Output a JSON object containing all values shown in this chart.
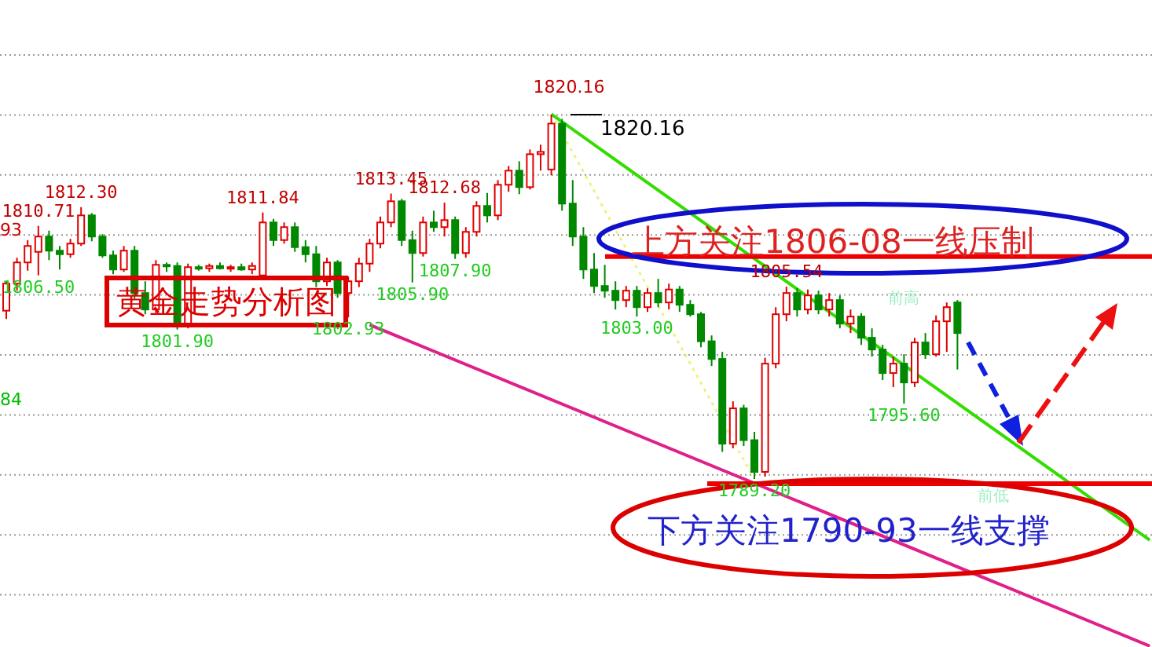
{
  "chart_data": {
    "type": "candlestick",
    "grid": true,
    "categories": [
      null,
      null,
      null,
      null,
      null,
      null,
      null,
      null,
      null,
      null,
      null,
      null,
      null,
      null,
      null,
      null,
      null,
      null,
      null,
      null,
      null,
      null,
      null,
      null,
      null,
      null,
      null,
      null,
      null,
      null,
      null,
      null,
      null,
      null,
      null,
      null,
      null,
      null,
      null,
      null,
      null,
      null,
      null,
      null,
      null,
      null,
      null,
      null,
      null,
      null,
      null,
      null,
      null,
      null,
      null,
      null,
      null,
      null,
      null,
      null,
      null,
      null,
      null,
      null,
      null,
      null,
      null,
      null,
      null,
      null,
      null,
      null,
      null,
      null,
      null,
      null,
      null,
      null,
      null,
      null,
      null,
      null,
      null,
      null,
      null,
      null,
      null,
      null,
      null,
      null,
      null,
      null,
      null,
      null,
      null,
      null,
      null,
      null,
      null,
      null,
      null,
      null,
      null,
      null,
      null,
      null,
      null,
      null
    ],
    "ohlc": [
      [
        1803.5,
        1806.0,
        1802.8,
        1805.8
      ],
      [
        1805.8,
        1808.0,
        1805.2,
        1807.6
      ],
      [
        1807.6,
        1809.5,
        1806.9,
        1809.0
      ],
      [
        1808.5,
        1810.71,
        1806.5,
        1809.8
      ],
      [
        1809.8,
        1810.3,
        1807.8,
        1808.6
      ],
      [
        1808.6,
        1809.0,
        1807.0,
        1808.3
      ],
      [
        1808.3,
        1809.6,
        1808.0,
        1809.2
      ],
      [
        1809.2,
        1812.3,
        1809.0,
        1811.6
      ],
      [
        1811.6,
        1811.8,
        1809.4,
        1809.8
      ],
      [
        1809.8,
        1810.0,
        1808.0,
        1808.2
      ],
      [
        1808.2,
        1808.6,
        1806.6,
        1807.0
      ],
      [
        1807.0,
        1809.0,
        1806.8,
        1808.6
      ],
      [
        1808.6,
        1809.0,
        1804.5,
        1805.0
      ],
      [
        1805.0,
        1806.0,
        1803.2,
        1803.6
      ],
      [
        1803.6,
        1807.8,
        1803.3,
        1807.4
      ],
      [
        1807.4,
        1807.6,
        1806.8,
        1807.3
      ],
      [
        1807.3,
        1807.6,
        1801.9,
        1802.2
      ],
      [
        1802.2,
        1807.5,
        1802.0,
        1807.2
      ],
      [
        1807.2,
        1807.4,
        1806.9,
        1807.1
      ],
      [
        1807.1,
        1807.5,
        1806.8,
        1807.3
      ],
      [
        1807.3,
        1807.6,
        1807.0,
        1807.1
      ],
      [
        1807.1,
        1807.4,
        1806.8,
        1807.2
      ],
      [
        1807.2,
        1807.5,
        1806.9,
        1807.0
      ],
      [
        1807.0,
        1807.6,
        1806.6,
        1807.3
      ],
      [
        1806.5,
        1811.84,
        1806.2,
        1811.0
      ],
      [
        1811.0,
        1811.3,
        1809.0,
        1809.5
      ],
      [
        1809.5,
        1811.0,
        1809.2,
        1810.6
      ],
      [
        1810.6,
        1811.0,
        1808.5,
        1808.9
      ],
      [
        1808.9,
        1809.5,
        1807.6,
        1808.3
      ],
      [
        1808.3,
        1809.0,
        1805.5,
        1806.0
      ],
      [
        1806.0,
        1808.0,
        1805.6,
        1807.6
      ],
      [
        1807.6,
        1807.8,
        1804.6,
        1805.0
      ],
      [
        1805.0,
        1806.4,
        1802.93,
        1806.0
      ],
      [
        1806.0,
        1808.0,
        1805.5,
        1807.5
      ],
      [
        1807.5,
        1809.6,
        1806.8,
        1809.2
      ],
      [
        1809.2,
        1811.5,
        1808.8,
        1811.0
      ],
      [
        1811.0,
        1813.45,
        1810.6,
        1812.8
      ],
      [
        1812.8,
        1813.0,
        1809.0,
        1809.5
      ],
      [
        1809.5,
        1810.3,
        1805.9,
        1808.4
      ],
      [
        1808.4,
        1811.5,
        1808.1,
        1811.0
      ],
      [
        1811.0,
        1812.0,
        1810.2,
        1810.6
      ],
      [
        1810.6,
        1812.68,
        1809.8,
        1811.2
      ],
      [
        1811.2,
        1811.5,
        1807.9,
        1808.4
      ],
      [
        1808.4,
        1810.6,
        1808.0,
        1810.2
      ],
      [
        1810.2,
        1812.8,
        1809.8,
        1812.4
      ],
      [
        1812.4,
        1813.5,
        1811.0,
        1811.6
      ],
      [
        1811.6,
        1814.6,
        1811.2,
        1814.2
      ],
      [
        1814.2,
        1815.8,
        1813.6,
        1815.4
      ],
      [
        1815.4,
        1816.2,
        1813.4,
        1814.0
      ],
      [
        1814.0,
        1817.2,
        1813.8,
        1816.8
      ],
      [
        1816.8,
        1817.6,
        1815.4,
        1817.0
      ],
      [
        1815.5,
        1820.16,
        1815.0,
        1819.4
      ],
      [
        1819.4,
        1819.8,
        1812.0,
        1812.6
      ],
      [
        1812.6,
        1814.6,
        1809.0,
        1809.8
      ],
      [
        1809.8,
        1810.6,
        1806.2,
        1807.0
      ],
      [
        1807.0,
        1808.4,
        1805.0,
        1805.6
      ],
      [
        1805.6,
        1807.4,
        1804.6,
        1805.2
      ],
      [
        1805.2,
        1806.0,
        1803.6,
        1804.4
      ],
      [
        1804.4,
        1805.6,
        1803.8,
        1805.2
      ],
      [
        1805.2,
        1805.6,
        1803.0,
        1803.8
      ],
      [
        1803.8,
        1805.4,
        1803.4,
        1805.0
      ],
      [
        1805.0,
        1806.2,
        1803.8,
        1804.2
      ],
      [
        1804.2,
        1805.8,
        1803.6,
        1805.3
      ],
      [
        1805.3,
        1805.6,
        1803.4,
        1804.0
      ],
      [
        1804.0,
        1804.4,
        1803.0,
        1803.2
      ],
      [
        1803.2,
        1803.4,
        1800.4,
        1800.9
      ],
      [
        1800.9,
        1801.4,
        1798.8,
        1799.4
      ],
      [
        1799.4,
        1800.0,
        1791.5,
        1792.2
      ],
      [
        1792.2,
        1795.8,
        1791.8,
        1795.2
      ],
      [
        1795.2,
        1795.5,
        1792.0,
        1792.5
      ],
      [
        1792.5,
        1793.2,
        1789.2,
        1789.8
      ],
      [
        1789.8,
        1799.5,
        1789.4,
        1799.0
      ],
      [
        1799.0,
        1803.8,
        1798.6,
        1803.2
      ],
      [
        1803.2,
        1805.54,
        1802.6,
        1805.0
      ],
      [
        1805.0,
        1805.4,
        1803.0,
        1803.6
      ],
      [
        1803.6,
        1805.3,
        1803.2,
        1804.8
      ],
      [
        1804.8,
        1805.2,
        1803.2,
        1803.6
      ],
      [
        1803.6,
        1805.0,
        1803.0,
        1804.4
      ],
      [
        1804.4,
        1804.8,
        1802.0,
        1802.4
      ],
      [
        1802.4,
        1803.6,
        1801.6,
        1803.0
      ],
      [
        1803.0,
        1803.3,
        1800.6,
        1801.2
      ],
      [
        1801.2,
        1802.0,
        1799.6,
        1800.2
      ],
      [
        1800.2,
        1800.6,
        1797.6,
        1798.2
      ],
      [
        1798.2,
        1799.6,
        1797.0,
        1799.0
      ],
      [
        1799.0,
        1799.8,
        1795.6,
        1797.4
      ],
      [
        1797.4,
        1801.2,
        1797.0,
        1800.8
      ],
      [
        1800.8,
        1801.6,
        1799.4,
        1799.8
      ],
      [
        1799.8,
        1803.1,
        1799.6,
        1802.6
      ],
      [
        1802.6,
        1804.2,
        1800.0,
        1803.8
      ],
      [
        1804.2,
        1804.4,
        1798.5,
        1801.6
      ],
      null,
      null,
      null,
      null,
      null,
      null,
      null,
      null,
      null,
      null,
      null,
      null,
      null,
      null,
      null,
      null,
      null,
      null
    ],
    "colors": [
      "#e00000",
      "#e00000",
      "#e00000",
      "#e00000",
      "#008800",
      "#008800",
      "#e00000",
      "#e00000",
      "#008800",
      "#008800",
      "#008800",
      "#e00000",
      "#008800",
      "#008800",
      "#e00000",
      "#008800",
      "#008800",
      "#e00000",
      "#008800",
      "#e00000",
      "#008800",
      "#e00000",
      "#008800",
      "#e00000",
      "#e00000",
      "#008800",
      "#e00000",
      "#008800",
      "#008800",
      "#008800",
      "#e00000",
      "#008800",
      "#e00000",
      "#e00000",
      "#e00000",
      "#e00000",
      "#e00000",
      "#008800",
      "#008800",
      "#e00000",
      "#008800",
      "#e00000",
      "#008800",
      "#e00000",
      "#e00000",
      "#008800",
      "#e00000",
      "#e00000",
      "#008800",
      "#e00000",
      "#e00000",
      "#e00000",
      "#008800",
      "#008800",
      "#008800",
      "#008800",
      "#008800",
      "#008800",
      "#e00000",
      "#008800",
      "#e00000",
      "#008800",
      "#e00000",
      "#008800",
      "#008800",
      "#008800",
      "#008800",
      "#008800",
      "#e00000",
      "#008800",
      "#008800",
      "#e00000",
      "#e00000",
      "#e00000",
      "#008800",
      "#e00000",
      "#008800",
      "#e00000",
      "#008800",
      "#e00000",
      "#008800",
      "#008800",
      "#008800",
      "#e00000",
      "#008800",
      "#e00000",
      "#008800",
      "#e00000",
      "#e00000",
      "#008800",
      null,
      null,
      null,
      null,
      null,
      null,
      null,
      null,
      null,
      null,
      null,
      null,
      null,
      null,
      null,
      null,
      null,
      null
    ],
    "series": [
      {
        "type": "line",
        "values": [
          null,
          null,
          null,
          null,
          null,
          null,
          null,
          null,
          null,
          null,
          null,
          null,
          null,
          null,
          null,
          null,
          null,
          null,
          null,
          null,
          null,
          null,
          null,
          null,
          null,
          null,
          null,
          null,
          null,
          null,
          null,
          null,
          null,
          null,
          null,
          null,
          null,
          null,
          null,
          null,
          null,
          null,
          null,
          null,
          null,
          null,
          null,
          null,
          null,
          null,
          null,
          1820.2,
          null,
          null,
          null,
          null,
          null,
          null,
          null,
          null,
          null,
          null,
          null,
          null,
          null,
          null,
          null,
          null,
          null,
          null,
          1789.2,
          null,
          null,
          null,
          null,
          null,
          null,
          null,
          null,
          null,
          null,
          null,
          null,
          null,
          null,
          null,
          null,
          null,
          null,
          null,
          null,
          null,
          null,
          null,
          null,
          null,
          null,
          null,
          null,
          null,
          null,
          null,
          null,
          null,
          null,
          null,
          null,
          null
        ],
        "color": "#f0f080",
        "line_style": "dotted"
      },
      {
        "type": "line",
        "values": [
          null,
          null,
          null,
          null,
          null,
          null,
          null,
          null,
          null,
          null,
          null,
          null,
          null,
          null,
          null,
          null,
          null,
          null,
          null,
          null,
          null,
          null,
          null,
          null,
          null,
          null,
          null,
          null,
          null,
          null,
          null,
          null,
          null,
          null,
          null,
          null,
          null,
          null,
          null,
          null,
          null,
          null,
          null,
          null,
          null,
          null,
          null,
          null,
          null,
          null,
          null,
          1820.2,
          null,
          null,
          null,
          null,
          null,
          null,
          null,
          null,
          null,
          null,
          null,
          null,
          null,
          null,
          null,
          null,
          null,
          null,
          null,
          null,
          null,
          null,
          null,
          null,
          null,
          null,
          null,
          null,
          null,
          null,
          null,
          null,
          null,
          null,
          null,
          null,
          null,
          null,
          null,
          null,
          null,
          null,
          null,
          null,
          null,
          null,
          null,
          null,
          null,
          null,
          null,
          null,
          null,
          null,
          null,
          1784.0
        ],
        "color": "#33dd00"
      },
      {
        "type": "line",
        "values": [
          null,
          null,
          null,
          null,
          null,
          null,
          null,
          null,
          null,
          null,
          null,
          null,
          null,
          null,
          null,
          null,
          null,
          null,
          null,
          null,
          null,
          null,
          null,
          null,
          null,
          null,
          null,
          null,
          null,
          null,
          null,
          null,
          null,
          null,
          1802.3,
          null,
          null,
          null,
          null,
          null,
          null,
          null,
          null,
          null,
          null,
          null,
          null,
          null,
          null,
          null,
          null,
          null,
          null,
          null,
          null,
          null,
          null,
          null,
          null,
          null,
          null,
          null,
          null,
          null,
          null,
          null,
          null,
          null,
          null,
          null,
          null,
          null,
          null,
          null,
          null,
          null,
          null,
          null,
          null,
          null,
          null,
          null,
          null,
          null,
          null,
          null,
          null,
          null,
          null,
          null,
          null,
          null,
          null,
          null,
          null,
          null,
          null,
          null,
          null,
          null,
          null,
          null,
          null,
          null,
          null,
          null,
          null,
          1775.0
        ],
        "color": "#e0208a"
      }
    ],
    "ref_lines": [
      {
        "axis": "y",
        "value": 1808.1,
        "color": "#ee0000"
      },
      {
        "axis": "y",
        "value": 1788.8,
        "color": "#ee0000"
      }
    ],
    "annotations": [
      "黄金走势分析图",
      "上方关注1806-08一线压制",
      "下方关注1790-93一线支撑",
      "前高",
      "前低",
      "93",
      "84",
      {
        "text": "1810.71",
        "y": 1810.71
      },
      {
        "text": "1812.30",
        "y": 1812.3
      },
      {
        "text": "1811.84",
        "y": 1811.84
      },
      {
        "text": "1813.45",
        "y": 1813.45
      },
      {
        "text": "1812.68",
        "y": 1812.68
      },
      "1820.16",
      "1820.16",
      {
        "text": "1805.54",
        "y": 1805.54
      },
      {
        "text": "1806.50",
        "y": 1806.5
      },
      {
        "text": "1801.90",
        "y": 1801.9
      },
      {
        "text": "1802.93",
        "y": 1802.93
      },
      {
        "text": "1807.90",
        "y": 1807.9
      },
      {
        "text": "1805.90",
        "y": 1805.9
      },
      {
        "text": "1803.00",
        "y": 1803.0
      },
      {
        "text": "1789.20",
        "y": 1789.2
      },
      {
        "text": "1795.60",
        "y": 1795.6
      }
    ]
  }
}
